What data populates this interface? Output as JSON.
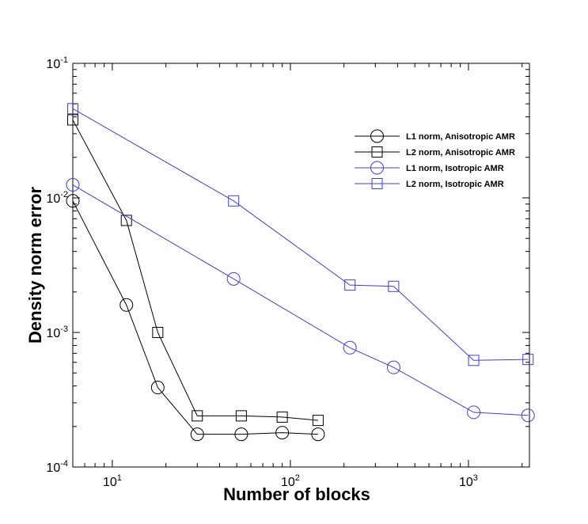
{
  "chart_data": {
    "type": "line",
    "title": "",
    "xlabel": "Number of blocks",
    "ylabel": "Density norm error",
    "xscale": "log",
    "yscale": "log",
    "xlim": [
      6,
      2200
    ],
    "ylim": [
      0.0001,
      0.1
    ],
    "x_ticks": [
      {
        "value": 10,
        "base": "10",
        "exp": "1"
      },
      {
        "value": 100,
        "base": "10",
        "exp": "2"
      },
      {
        "value": 1000,
        "base": "10",
        "exp": "3"
      }
    ],
    "y_ticks": [
      {
        "value": 0.1,
        "base": "10",
        "exp": "-1"
      },
      {
        "value": 0.01,
        "base": "10",
        "exp": "-2"
      },
      {
        "value": 0.001,
        "base": "10",
        "exp": "-3"
      },
      {
        "value": 0.0001,
        "base": "10",
        "exp": "-4"
      }
    ],
    "grid": false,
    "legend_position": "top-right",
    "series": [
      {
        "name": "L1 norm, Anisotropic AMR",
        "color": "#000000",
        "marker": "circle",
        "x": [
          6,
          12,
          18,
          30,
          53,
          90,
          143
        ],
        "y": [
          0.0095,
          0.0016,
          0.00039,
          0.000175,
          0.000175,
          0.00018,
          0.000175
        ]
      },
      {
        "name": "L2 norm, Anisotropic AMR",
        "color": "#000000",
        "marker": "square",
        "x": [
          6,
          12,
          18,
          30,
          53,
          90,
          143
        ],
        "y": [
          0.038,
          0.0068,
          0.001,
          0.00024,
          0.00024,
          0.000235,
          0.000222
        ]
      },
      {
        "name": "L1 norm, Isotropic AMR",
        "color": "#4040cc",
        "marker": "circle",
        "x": [
          6,
          48,
          216,
          380,
          1070,
          2160
        ],
        "y": [
          0.0125,
          0.0025,
          0.00077,
          0.00055,
          0.000255,
          0.000242
        ]
      },
      {
        "name": "L2 norm, Isotropic AMR",
        "color": "#4040cc",
        "marker": "square",
        "x": [
          6,
          48,
          216,
          380,
          1070,
          2160
        ],
        "y": [
          0.046,
          0.0095,
          0.00225,
          0.0022,
          0.00062,
          0.00063
        ]
      }
    ]
  }
}
